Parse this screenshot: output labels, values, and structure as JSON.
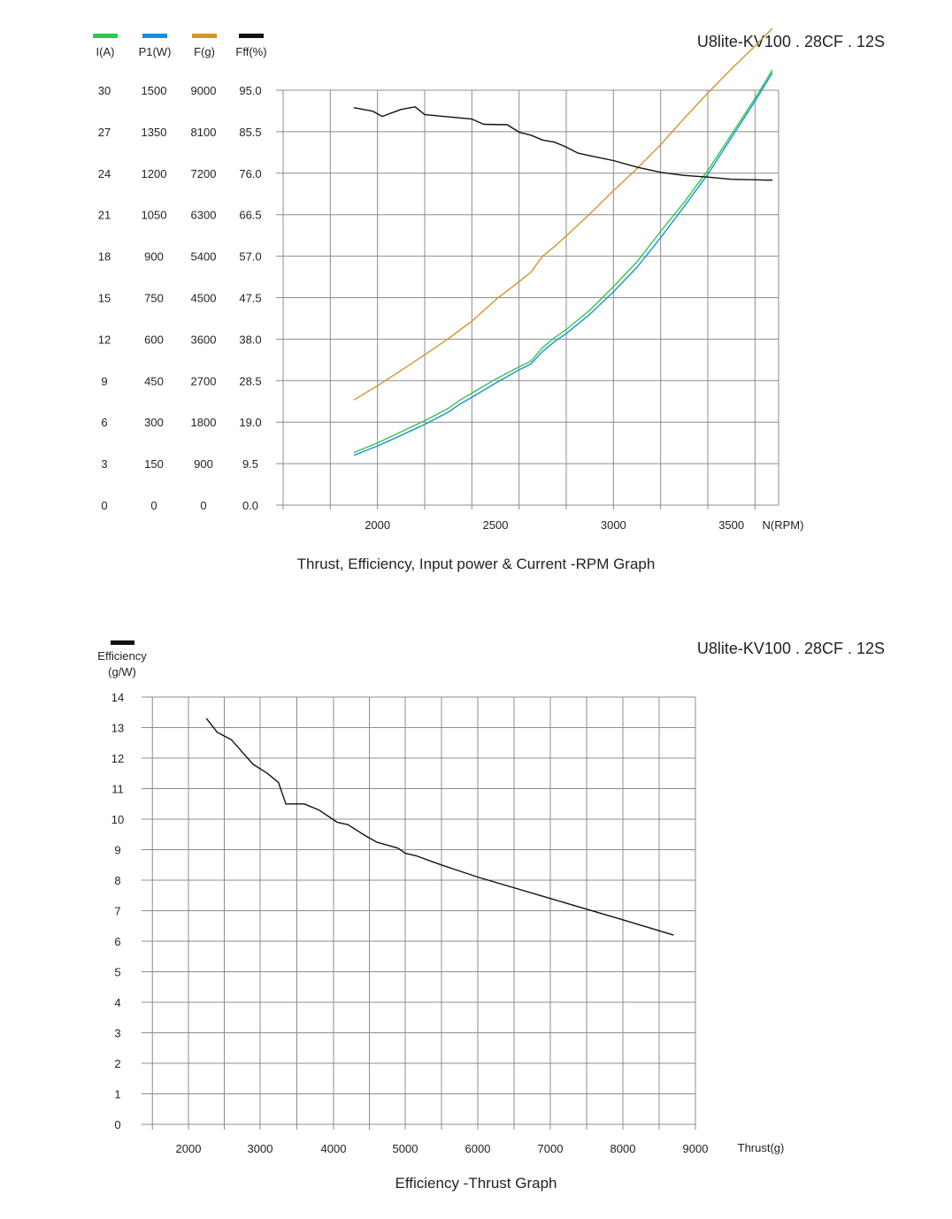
{
  "chart_data": [
    {
      "type": "line",
      "title": "U8lite-KV100 . 28CF . 12S",
      "caption": "Thrust, Efficiency, Input power & Current -RPM Graph",
      "xlabel": "N(RPM)",
      "xlim": [
        1600,
        3700
      ],
      "x_ticks": [
        "2000",
        "2500",
        "3000",
        "3500"
      ],
      "grid": true,
      "legend_position": "top-left",
      "axes": [
        {
          "label": "I(A)",
          "color": "#2fc84a",
          "ticks": [
            "0",
            "3",
            "6",
            "9",
            "12",
            "15",
            "18",
            "21",
            "24",
            "27",
            "30"
          ],
          "ylim": [
            0,
            30
          ]
        },
        {
          "label": "P1(W)",
          "color": "#1a8fd8",
          "ticks": [
            "0",
            "150",
            "300",
            "450",
            "600",
            "750",
            "900",
            "1050",
            "1200",
            "1350",
            "1500"
          ],
          "ylim": [
            0,
            1500
          ]
        },
        {
          "label": "F(g)",
          "color": "#d4962a",
          "ticks": [
            "0",
            "900",
            "1800",
            "2700",
            "3600",
            "4500",
            "5400",
            "6300",
            "7200",
            "8100",
            "9000"
          ],
          "ylim": [
            0,
            9000
          ]
        },
        {
          "label": "Fff(%)",
          "color": "#111111",
          "ticks": [
            "0.0",
            "9.5",
            "19.0",
            "28.5",
            "38.0",
            "47.5",
            "57.0",
            "66.5",
            "76.0",
            "85.5",
            "95.0"
          ],
          "ylim": [
            0,
            95
          ]
        }
      ],
      "series": [
        {
          "name": "I(A)",
          "color": "#2fc84a",
          "axis": 0,
          "x": [
            1900,
            2000,
            2100,
            2200,
            2300,
            2350,
            2400,
            2500,
            2600,
            2650,
            2700,
            2750,
            2800,
            2900,
            3000,
            3100,
            3200,
            3300,
            3400,
            3500,
            3600,
            3700
          ],
          "y": [
            3.8,
            4.5,
            5.3,
            6.1,
            7.0,
            7.6,
            8.1,
            9.1,
            10.0,
            10.4,
            11.4,
            12.1,
            12.7,
            14.1,
            15.8,
            17.6,
            19.8,
            21.9,
            24.2,
            26.8,
            29.4,
            32.2
          ]
        },
        {
          "name": "P1(W)",
          "color": "#1a8fd8",
          "axis": 1,
          "x": [
            1900,
            2000,
            2100,
            2200,
            2300,
            2350,
            2400,
            2500,
            2600,
            2650,
            2700,
            2750,
            2800,
            2900,
            3000,
            3100,
            3200,
            3300,
            3400,
            3500,
            3600,
            3700
          ],
          "y": [
            180,
            214,
            252,
            292,
            336,
            366,
            390,
            441,
            489,
            510,
            556,
            591,
            620,
            690,
            771,
            860,
            967,
            1080,
            1196,
            1329,
            1460,
            1600
          ]
        },
        {
          "name": "F(g)",
          "color": "#d4962a",
          "axis": 2,
          "x": [
            1900,
            2000,
            2100,
            2200,
            2300,
            2400,
            2500,
            2600,
            2650,
            2700,
            2750,
            2800,
            2900,
            3000,
            3100,
            3200,
            3300,
            3400,
            3500,
            3600,
            3700
          ],
          "y": [
            2280,
            2590,
            2920,
            3260,
            3610,
            3990,
            4450,
            4850,
            5050,
            5400,
            5610,
            5840,
            6320,
            6820,
            7300,
            7820,
            8390,
            8940,
            9460,
            9960,
            10480
          ]
        },
        {
          "name": "Fff(%)",
          "color": "#111111",
          "axis": 3,
          "x": [
            1900,
            1980,
            2020,
            2100,
            2160,
            2200,
            2300,
            2400,
            2450,
            2550,
            2600,
            2650,
            2700,
            2750,
            2800,
            2850,
            2900,
            3000,
            3100,
            3200,
            3300,
            3400,
            3500,
            3600,
            3650,
            3700
          ],
          "y": [
            91.0,
            90.2,
            89.0,
            90.6,
            91.2,
            89.4,
            88.9,
            88.4,
            87.2,
            87.1,
            85.4,
            84.7,
            83.6,
            83.1,
            82.0,
            80.6,
            80.0,
            78.9,
            77.4,
            76.2,
            75.5,
            75.1,
            74.6,
            74.5,
            74.4,
            74.5
          ]
        }
      ]
    },
    {
      "type": "line",
      "title": "U8lite-KV100 . 28CF . 12S",
      "caption": "Efficiency -Thrust Graph",
      "xlabel": "Thrust(g)",
      "ylabel": "Efficiency (g/W)",
      "legend_label": "Efficiency",
      "legend_unit": "(g/W)",
      "xlim": [
        1500,
        9000
      ],
      "ylim": [
        0,
        14
      ],
      "x_ticks": [
        "2000",
        "3000",
        "4000",
        "5000",
        "6000",
        "7000",
        "8000",
        "9000"
      ],
      "y_ticks": [
        "0",
        "1",
        "2",
        "3",
        "4",
        "5",
        "6",
        "7",
        "8",
        "9",
        "10",
        "11",
        "12",
        "13",
        "14"
      ],
      "grid": true,
      "series": [
        {
          "name": "Efficiency",
          "color": "#111111",
          "x": [
            2250,
            2400,
            2600,
            2900,
            3100,
            3250,
            3350,
            3600,
            3800,
            4050,
            4200,
            4450,
            4600,
            4900,
            5000,
            5150,
            5500,
            6000,
            7000,
            8000,
            8700
          ],
          "y": [
            13.3,
            12.85,
            12.6,
            11.8,
            11.5,
            11.2,
            10.5,
            10.5,
            10.3,
            9.9,
            9.82,
            9.45,
            9.25,
            9.05,
            8.88,
            8.8,
            8.5,
            8.1,
            7.4,
            6.7,
            6.2
          ]
        }
      ]
    }
  ]
}
